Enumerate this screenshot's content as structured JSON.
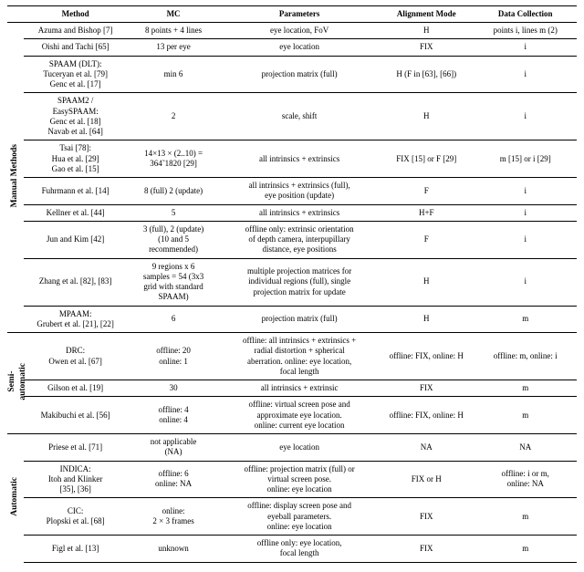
{
  "table": {
    "columns": [
      "Method",
      "MC",
      "Parameters",
      "Alignment Mode",
      "Data Collection"
    ],
    "font_family": "Palatino / serif",
    "font_size_pt": 7,
    "header_font_weight": "bold",
    "rule_color": "#000000",
    "background_color": "#ffffff",
    "groups": [
      {
        "label": "Manual Methods",
        "rows": [
          {
            "method": "Azuma and Bishop [7]",
            "mc": "8 points + 4 lines",
            "parameters": "eye location, FoV",
            "align": "H",
            "data": "points i, lines m (2)"
          },
          {
            "method": "Oishi and Tachi [65]",
            "mc": "13 per eye",
            "parameters": "eye location",
            "align": "FIX",
            "data": "i"
          },
          {
            "method": "SPAAM (DLT):\nTuceryan et al. [79]\nGenc et al. [17]",
            "mc": "min 6",
            "parameters": "projection matrix (full)",
            "align": "H (F in [63], [66])",
            "data": "i"
          },
          {
            "method": "SPAAM2 /\nEasySPAAM:\nGenc et al. [18]\nNavab et al. [64]",
            "mc": "2",
            "parameters": "scale, shift",
            "align": "H",
            "data": "i"
          },
          {
            "method": "Tsai [78]:\nHua et al. [29]\nGao et al. [15]",
            "mc": "14×13 × (2..10) =\n364˜1820 [29]",
            "parameters": "all intrinsics + extrinsics",
            "align": "FIX [15] or F [29]",
            "data": "m [15] or i [29]"
          },
          {
            "method": "Fuhrmann et al. [14]",
            "mc": "8 (full) 2 (update)",
            "parameters": "all intrinsics + extrinsics (full),\neye position (update)",
            "align": "F",
            "data": "i"
          },
          {
            "method": "Kellner et al. [44]",
            "mc": "5",
            "parameters": "all intrinsics + extrinsics",
            "align": "H+F",
            "data": "i"
          },
          {
            "method": "Jun and Kim [42]",
            "mc": "3 (full), 2 (update)\n(10 and 5\nrecommended)",
            "parameters": "offline only: extrinsic orientation\nof depth camera, interpupillary\ndistance, eye positions",
            "align": "F",
            "data": "i"
          },
          {
            "method": "Zhang et al. [82], [83]",
            "mc": "9 regions x 6\nsamples = 54 (3x3\ngrid with standard\nSPAAM)",
            "parameters": "multiple projection matrices for\nindividual regions (full), single\nprojection matrix for update",
            "align": "H",
            "data": "i"
          },
          {
            "method": "MPAAM:\nGrubert et al. [21], [22]",
            "mc": "6",
            "parameters": "projection matrix (full)",
            "align": "H",
            "data": "m"
          }
        ]
      },
      {
        "label": "Semi-\nautomatic",
        "rows": [
          {
            "method": "DRC:\nOwen et al. [67]",
            "mc": "offline: 20\nonline: 1",
            "parameters": "offline: all intrinsics + extrinsics +\nradial distortion + spherical\naberration. online: eye location,\nfocal length",
            "align": "offline: FIX, online: H",
            "data": "offline: m, online: i"
          },
          {
            "method": "Gilson et al. [19]",
            "mc": "30",
            "parameters": "all intrinsics + extrinsic",
            "align": "FIX",
            "data": "m"
          },
          {
            "method": "Makibuchi et al. [56]",
            "mc": "offline: 4\nonline: 4",
            "parameters": "offline: virtual screen pose and\napproximate eye location.\nonline: current eye location",
            "align": "offline: FIX, online: H",
            "data": "m"
          }
        ]
      },
      {
        "label": "Automatic",
        "rows": [
          {
            "method": "Priese et al. [71]",
            "mc": "not applicable\n(NA)",
            "parameters": "eye location",
            "align": "NA",
            "data": "NA"
          },
          {
            "method": "INDICA:\nItoh and Klinker\n[35], [36]",
            "mc": "offline: 6\nonline: NA",
            "parameters": "offline: projection matrix (full) or\nvirtual screen pose.\nonline: eye location",
            "align": "FIX or H",
            "data": "offline: i or m,\nonline: NA"
          },
          {
            "method": "CIC:\nPlopski et al. [68]",
            "mc": "online:\n2 × 3 frames",
            "parameters": "offline: display screen pose and\neyeball parameters.\nonline: eye location",
            "align": "FIX",
            "data": "m"
          },
          {
            "method": "Figl et al. [13]",
            "mc": "unknown",
            "parameters": "offline only: eye location,\nfocal length",
            "align": "FIX",
            "data": "m"
          }
        ]
      }
    ]
  }
}
